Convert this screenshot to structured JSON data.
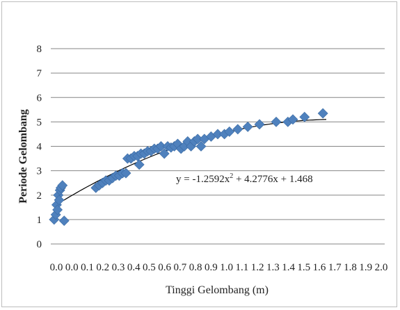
{
  "chart_data": {
    "type": "scatter",
    "xlabel": "Tinggi Gelombang (m)",
    "ylabel": "Periode Gelombang",
    "xlim": [
      0,
      2.0
    ],
    "ylim": [
      0,
      8
    ],
    "xticks": [
      "0.0",
      "0.0",
      "0.1",
      "0.2",
      "0.3",
      "0.4",
      "0.5",
      "0.6",
      "0.7",
      "0.8",
      "0.9",
      "1.0",
      "1.1",
      "1.2",
      "1.3",
      "1.4",
      "1.5",
      "1.6",
      "1.7",
      "1.8",
      "1.9",
      "2.0"
    ],
    "yticks": [
      "0",
      "1",
      "2",
      "3",
      "4",
      "5",
      "6",
      "7",
      "8"
    ],
    "marker_color": "#4f81bd",
    "grid": "horizontal",
    "trendline": {
      "equation_prefix": "y = -1.2592x",
      "equation_suffix": " + 4.2776x + 1.468",
      "coefficients": {
        "a": -1.2592,
        "b": 4.2776,
        "c": 1.468
      },
      "x_range": [
        0.03,
        1.65
      ]
    },
    "points": [
      [
        0.02,
        1.0
      ],
      [
        0.03,
        1.2
      ],
      [
        0.035,
        1.6
      ],
      [
        0.04,
        1.4
      ],
      [
        0.045,
        2.0
      ],
      [
        0.05,
        1.8
      ],
      [
        0.055,
        2.2
      ],
      [
        0.06,
        2.3
      ],
      [
        0.07,
        2.4
      ],
      [
        0.08,
        0.95
      ],
      [
        0.27,
        2.3
      ],
      [
        0.29,
        2.4
      ],
      [
        0.31,
        2.5
      ],
      [
        0.33,
        2.6
      ],
      [
        0.35,
        2.6
      ],
      [
        0.37,
        2.7
      ],
      [
        0.39,
        2.8
      ],
      [
        0.41,
        2.8
      ],
      [
        0.43,
        2.9
      ],
      [
        0.45,
        2.9
      ],
      [
        0.46,
        3.5
      ],
      [
        0.48,
        3.5
      ],
      [
        0.5,
        3.6
      ],
      [
        0.52,
        3.6
      ],
      [
        0.53,
        3.25
      ],
      [
        0.54,
        3.7
      ],
      [
        0.56,
        3.7
      ],
      [
        0.58,
        3.8
      ],
      [
        0.6,
        3.8
      ],
      [
        0.62,
        3.9
      ],
      [
        0.64,
        3.9
      ],
      [
        0.66,
        4.0
      ],
      [
        0.68,
        3.7
      ],
      [
        0.7,
        4.0
      ],
      [
        0.72,
        3.95
      ],
      [
        0.74,
        4.0
      ],
      [
        0.76,
        4.1
      ],
      [
        0.78,
        3.9
      ],
      [
        0.8,
        4.0
      ],
      [
        0.82,
        4.2
      ],
      [
        0.84,
        4.0
      ],
      [
        0.86,
        4.2
      ],
      [
        0.88,
        4.3
      ],
      [
        0.9,
        4.0
      ],
      [
        0.92,
        4.3
      ],
      [
        0.96,
        4.4
      ],
      [
        1.0,
        4.5
      ],
      [
        1.04,
        4.5
      ],
      [
        1.07,
        4.6
      ],
      [
        1.12,
        4.7
      ],
      [
        1.18,
        4.8
      ],
      [
        1.25,
        4.9
      ],
      [
        1.35,
        5.0
      ],
      [
        1.42,
        5.0
      ],
      [
        1.45,
        5.1
      ],
      [
        1.52,
        5.2
      ],
      [
        1.63,
        5.35
      ]
    ]
  }
}
